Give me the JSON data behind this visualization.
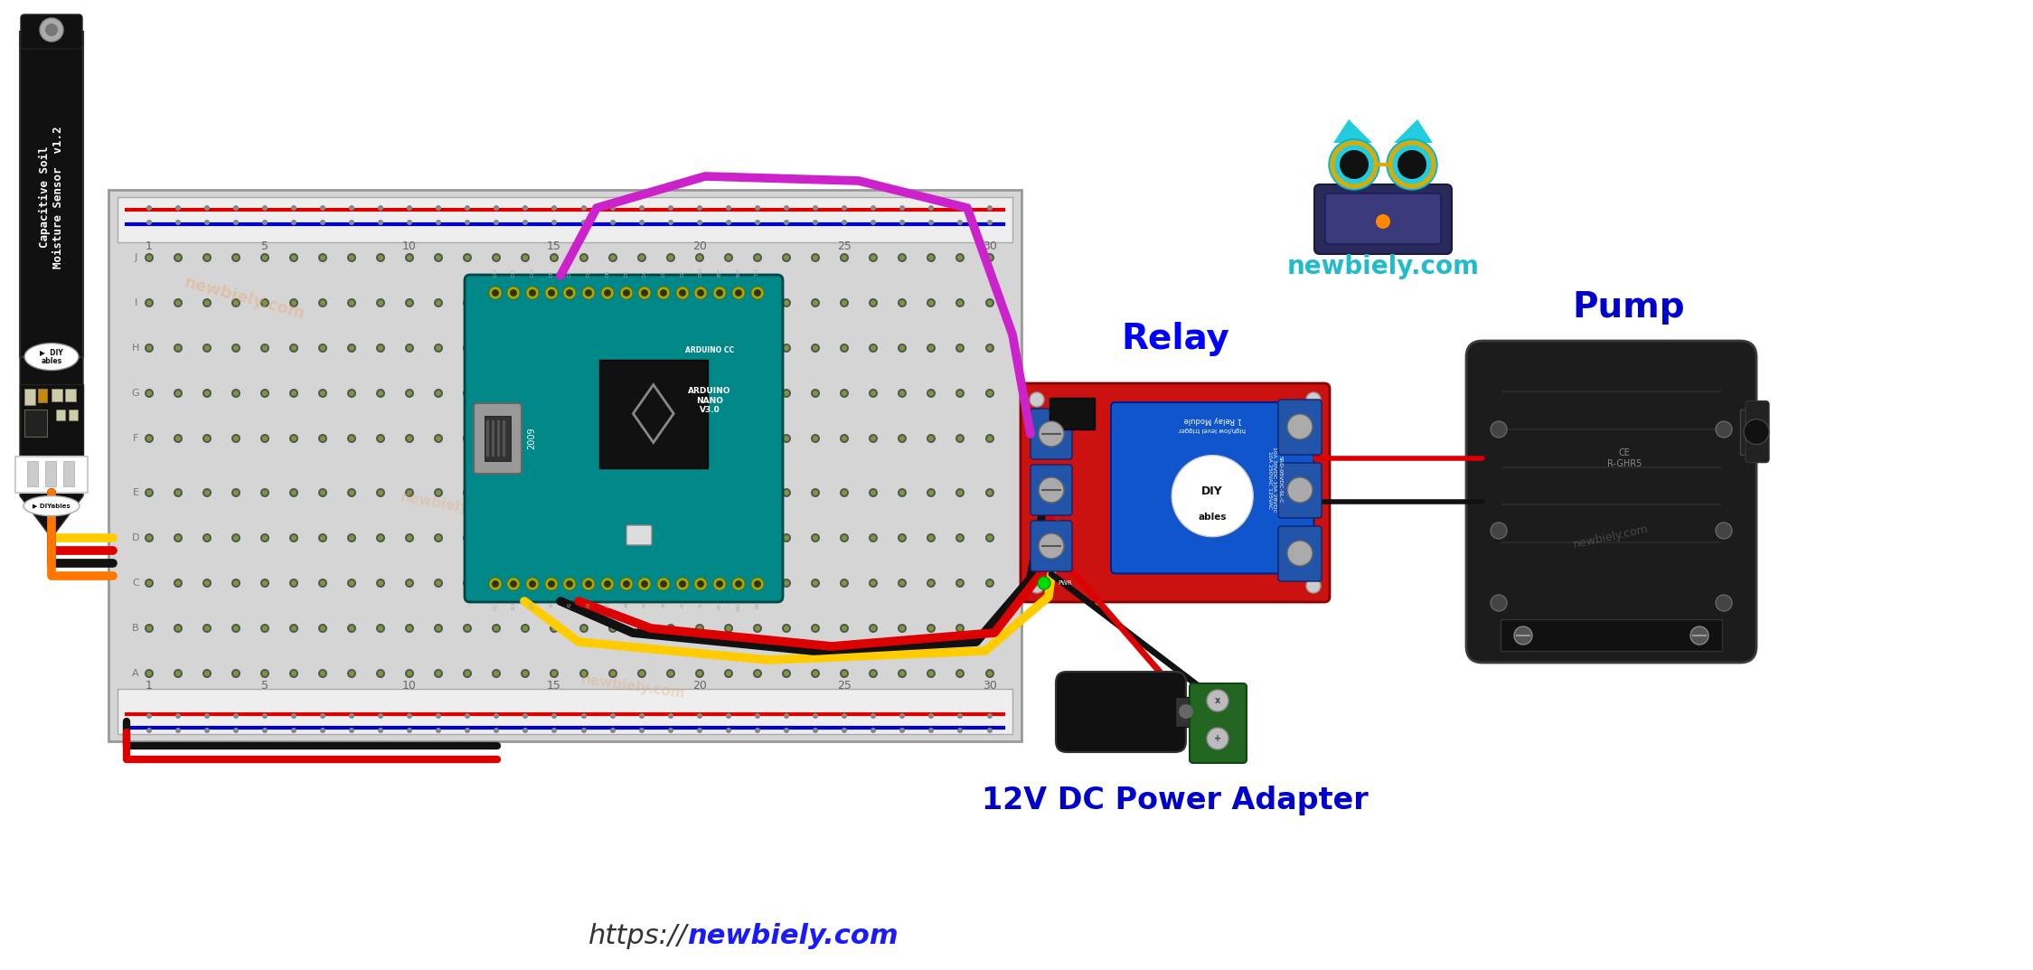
{
  "bg_color": "#ffffff",
  "title_url_color": "#1a1aff",
  "newbiely_text": "newbiely.com",
  "newbiely_text_color": "#22bbcc",
  "relay_label": "Relay",
  "relay_label_color": "#0000ff",
  "pump_label": "Pump",
  "pump_label_color": "#0000cc",
  "power_label": "12V DC Power Adapter",
  "power_label_color": "#0000cc",
  "wire_red": "#dd0000",
  "wire_black": "#111111",
  "wire_yellow": "#ffcc00",
  "wire_magenta": "#cc22cc",
  "wire_orange": "#ff7700",
  "wire_green": "#006600",
  "breadboard_color": "#d8d8d8",
  "breadboard_border": "#999999",
  "breadboard_rail_bg": "#f0f0f0",
  "breadboard_hole": "#888888",
  "arduino_teal": "#008888",
  "sensor_black": "#111111",
  "relay_red": "#cc1111",
  "relay_blue": "#1155cc",
  "pump_dark": "#1c1c1c",
  "pump_medium": "#2a2a2a"
}
